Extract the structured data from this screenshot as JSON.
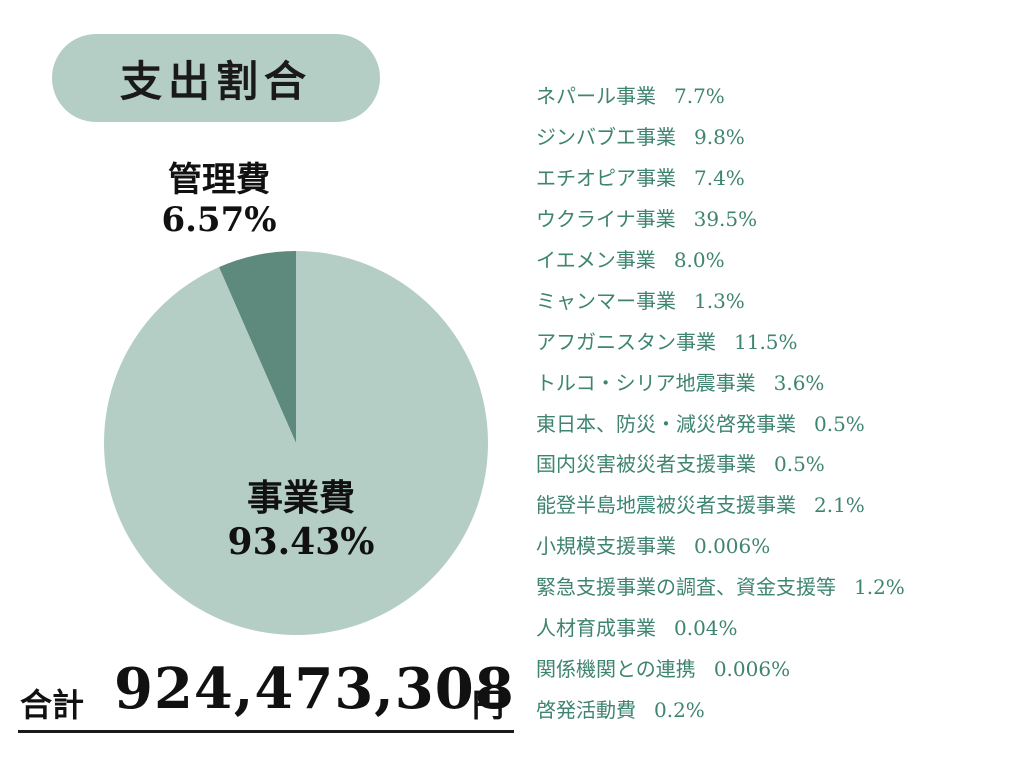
{
  "title": "支出割合",
  "chart_data": {
    "type": "pie",
    "slices": [
      {
        "label": "管理費",
        "value": 6.57,
        "value_text": "6.57%",
        "color": "#5d8a7d"
      },
      {
        "label": "事業費",
        "value": 93.43,
        "value_text": "93.43%",
        "color": "#b5cec5"
      }
    ]
  },
  "total": {
    "label": "合計",
    "amount": "924,473,308",
    "unit": "円"
  },
  "breakdown": [
    {
      "name": "ネパール事業",
      "value": "7.7%"
    },
    {
      "name": "ジンバブエ事業",
      "value": "9.8%"
    },
    {
      "name": "エチオピア事業",
      "value": "7.4%"
    },
    {
      "name": "ウクライナ事業",
      "value": "39.5%"
    },
    {
      "name": "イエメン事業",
      "value": "8.0%"
    },
    {
      "name": "ミャンマー事業",
      "value": "1.3%"
    },
    {
      "name": "アフガニスタン事業",
      "value": "11.5%"
    },
    {
      "name": "トルコ・シリア地震事業",
      "value": "3.6%"
    },
    {
      "name": "東日本、防災・減災啓発事業",
      "value": "0.5%"
    },
    {
      "name": "国内災害被災者支援事業",
      "value": "0.5%"
    },
    {
      "name": "能登半島地震被災者支援事業",
      "value": "2.1%"
    },
    {
      "name": "小規模支援事業",
      "value": "0.006%"
    },
    {
      "name": "緊急支援事業の調査、資金支援等",
      "value": "1.2%"
    },
    {
      "name": "人材育成事業",
      "value": "0.04%"
    },
    {
      "name": "関係機関との連携",
      "value": "0.006%"
    },
    {
      "name": "啓発活動費",
      "value": "0.2%"
    }
  ],
  "colors": {
    "pill": "#b5cec5",
    "legend_text": "#3e8470"
  }
}
